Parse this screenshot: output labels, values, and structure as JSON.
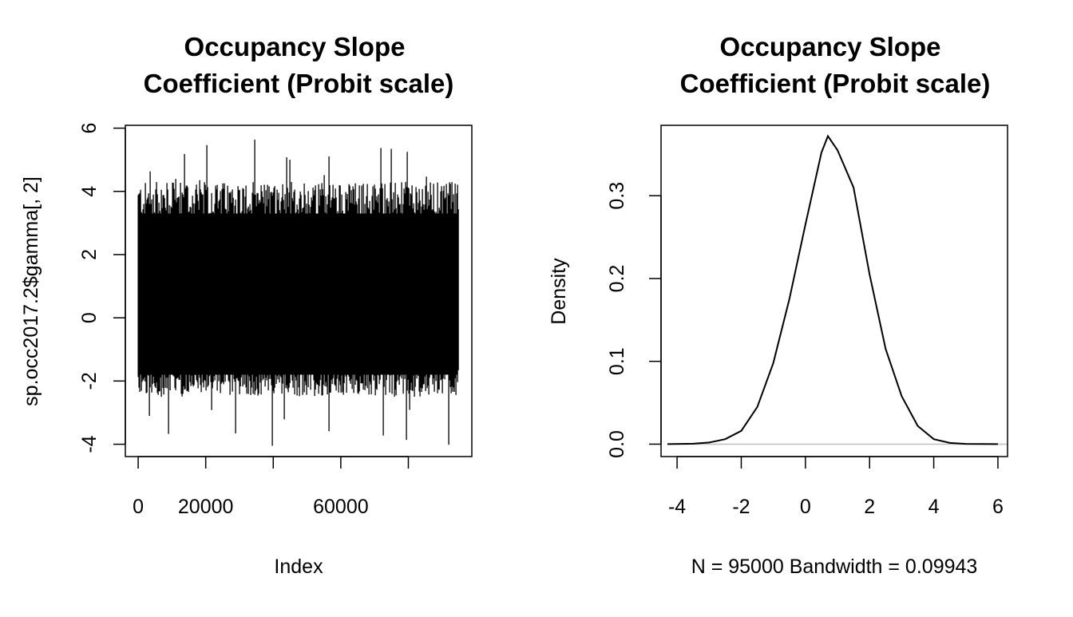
{
  "chart_data": [
    {
      "type": "line",
      "title_lines": [
        "Occupancy Slope",
        "Coefficient (Probit scale)"
      ],
      "xlabel": "Index",
      "ylabel": "sp.occ2017.2$gamma[, 2]",
      "xlim": [
        0,
        95000
      ],
      "ylim": [
        -4,
        6
      ],
      "x_ticks": [
        0,
        20000,
        40000,
        60000,
        80000
      ],
      "x_tick_labels": [
        "0",
        "20000",
        "",
        "60000",
        ""
      ],
      "y_ticks": [
        -4,
        -2,
        0,
        2,
        4,
        6
      ],
      "y_tick_labels": [
        "-4",
        "-2",
        "0",
        "2",
        "4",
        "6"
      ],
      "n_iterations": 95000,
      "band_typical": [
        -1.9,
        3.4
      ],
      "observed_max": 5.65,
      "observed_min": -4.05,
      "grid": false,
      "legend": "none",
      "line_color": "#000000"
    },
    {
      "type": "line",
      "title_lines": [
        "Occupancy Slope",
        "Coefficient (Probit scale)"
      ],
      "xlabel": "N = 95000   Bandwidth = 0.09943",
      "ylabel": "Density",
      "xlim": [
        -4.5,
        6.3
      ],
      "ylim": [
        -0.015,
        0.385
      ],
      "x_ticks": [
        -4,
        -2,
        0,
        2,
        4,
        6
      ],
      "x_tick_labels": [
        "-4",
        "-2",
        "0",
        "2",
        "4",
        "6"
      ],
      "y_ticks": [
        0.0,
        0.1,
        0.2,
        0.3
      ],
      "y_tick_labels": [
        "0.0",
        "0.1",
        "0.2",
        "0.3"
      ],
      "x": [
        -4.3,
        -3.5,
        -3.0,
        -2.5,
        -2.0,
        -1.5,
        -1.0,
        -0.5,
        0.0,
        0.5,
        0.7,
        1.0,
        1.5,
        2.0,
        2.5,
        3.0,
        3.5,
        4.0,
        4.5,
        5.0,
        6.0
      ],
      "y": [
        0.0,
        0.0005,
        0.002,
        0.006,
        0.016,
        0.045,
        0.098,
        0.175,
        0.265,
        0.352,
        0.372,
        0.355,
        0.31,
        0.205,
        0.115,
        0.058,
        0.022,
        0.006,
        0.0015,
        0.0003,
        0.0
      ],
      "baseline": 0,
      "baseline_color": "#bebebe",
      "grid": false,
      "legend": "none",
      "line_color": "#000000"
    }
  ]
}
